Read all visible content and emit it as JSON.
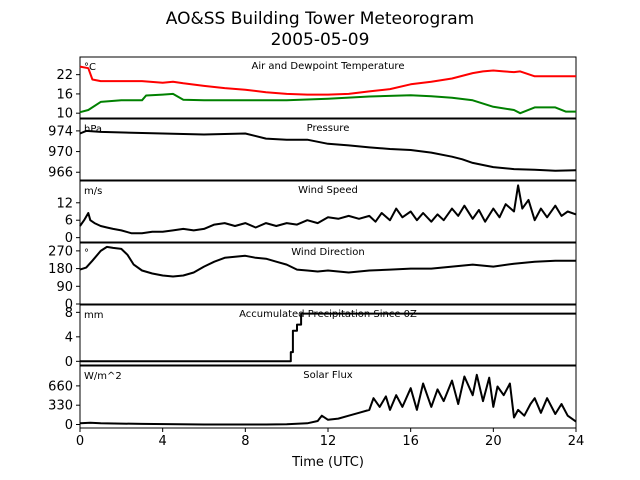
{
  "figure": {
    "title_line1": "AO&SS Building Tower Meteorogram",
    "title_line2": "2005-05-09",
    "xlabel": "Time (UTC)",
    "xlim": [
      0,
      24
    ],
    "xticks": [
      0,
      4,
      8,
      12,
      16,
      20,
      24
    ]
  },
  "chart_data": [
    {
      "type": "line",
      "title": "Air and Dewpoint Temperature",
      "unit": "°C",
      "ylim": [
        8.5,
        27.5
      ],
      "yticks": [
        10,
        16,
        22
      ],
      "series": [
        {
          "color": "#ff0000",
          "x": [
            0,
            0.4,
            0.6,
            1,
            2,
            3,
            4,
            4.5,
            5,
            6,
            7,
            8,
            9,
            10,
            11,
            12,
            13,
            14,
            15,
            16,
            17,
            18,
            19,
            19.5,
            20,
            20.5,
            21,
            21.3,
            22,
            23,
            24
          ],
          "y": [
            24.5,
            24.0,
            20.5,
            20.0,
            20.0,
            20.0,
            19.5,
            19.8,
            19.3,
            18.5,
            17.8,
            17.3,
            16.5,
            16.0,
            15.8,
            15.8,
            16.0,
            16.8,
            17.5,
            19.0,
            19.8,
            20.8,
            22.5,
            23.0,
            23.3,
            23.0,
            22.8,
            23.0,
            21.5,
            21.5,
            21.5
          ]
        },
        {
          "color": "#008000",
          "x": [
            0,
            0.4,
            1,
            2,
            3,
            3.2,
            4,
            4.5,
            5,
            6,
            8,
            10,
            12,
            14,
            16,
            17,
            18,
            19,
            20,
            21,
            21.3,
            22,
            23,
            23.5,
            24
          ],
          "y": [
            10.3,
            11.0,
            13.5,
            14.0,
            14.0,
            15.5,
            15.8,
            16.0,
            14.2,
            14.0,
            14.0,
            14.0,
            14.5,
            15.2,
            15.6,
            15.3,
            14.8,
            14.0,
            12.0,
            11.0,
            10.0,
            11.8,
            11.8,
            10.5,
            10.5
          ]
        }
      ]
    },
    {
      "type": "line",
      "title": "Pressure",
      "unit": "hPa",
      "ylim": [
        964.5,
        976.3
      ],
      "yticks": [
        966,
        970,
        974
      ],
      "series": [
        {
          "color": "#000000",
          "x": [
            0,
            0.3,
            1,
            4,
            6,
            8,
            9,
            10,
            11,
            12,
            13,
            14,
            15,
            16,
            17,
            18,
            18.5,
            19,
            20,
            21,
            22,
            23,
            24
          ],
          "y": [
            973.5,
            974.0,
            973.8,
            973.5,
            973.3,
            973.5,
            972.5,
            972.3,
            972.3,
            971.5,
            971.2,
            970.8,
            970.5,
            970.3,
            969.8,
            969.0,
            968.5,
            967.8,
            967.0,
            966.6,
            966.5,
            966.3,
            966.4
          ]
        }
      ]
    },
    {
      "type": "line",
      "title": "Wind Speed",
      "unit": "m/s",
      "ylim": [
        -1.5,
        19.5
      ],
      "yticks": [
        0,
        6,
        12
      ],
      "series": [
        {
          "color": "#000000",
          "x": [
            0,
            0.2,
            0.4,
            0.5,
            0.7,
            1,
            1.3,
            1.6,
            2,
            2.5,
            3,
            3.5,
            4,
            4.5,
            5,
            5.5,
            6,
            6.5,
            7,
            7.5,
            8,
            8.5,
            9,
            9.5,
            10,
            10.5,
            11,
            11.5,
            12,
            12.5,
            13,
            13.5,
            14,
            14.3,
            14.6,
            15,
            15.3,
            15.6,
            16,
            16.3,
            16.6,
            17,
            17.3,
            17.6,
            18,
            18.3,
            18.6,
            19,
            19.3,
            19.6,
            20,
            20.3,
            20.6,
            21,
            21.2,
            21.4,
            21.7,
            22,
            22.3,
            22.6,
            23,
            23.3,
            23.6,
            24
          ],
          "y": [
            4,
            6,
            8.5,
            6,
            5,
            4,
            3.5,
            3,
            2.5,
            1.5,
            1.5,
            2,
            2,
            2.5,
            3,
            2.5,
            3,
            4.5,
            5,
            4,
            5,
            3.5,
            5,
            4,
            5,
            4.5,
            6,
            5,
            7,
            6.5,
            7.5,
            6.5,
            7.5,
            5.5,
            8.5,
            6,
            10,
            7,
            9,
            6,
            8.5,
            5.5,
            8,
            6,
            10,
            7.5,
            11,
            6.5,
            9.5,
            5.5,
            10,
            7,
            11.5,
            9,
            18,
            10,
            13,
            6,
            10,
            7,
            11,
            7.5,
            9,
            8
          ]
        }
      ]
    },
    {
      "type": "line",
      "title": "Wind Direction",
      "unit": "°",
      "ylim": [
        0,
        310
      ],
      "yticks": [
        0,
        90,
        180,
        270
      ],
      "series": [
        {
          "color": "#000000",
          "x": [
            0,
            0.3,
            0.6,
            1,
            1.3,
            1.6,
            2,
            2.3,
            2.6,
            3,
            3.5,
            4,
            4.5,
            5,
            5.5,
            6,
            6.5,
            7,
            7.5,
            8,
            8.5,
            9,
            9.5,
            10,
            10.5,
            11,
            11.5,
            12,
            13,
            14,
            15,
            16,
            17,
            18,
            19,
            20,
            21,
            22,
            23,
            24
          ],
          "y": [
            175,
            185,
            220,
            270,
            290,
            285,
            280,
            250,
            200,
            170,
            155,
            145,
            140,
            145,
            160,
            190,
            215,
            235,
            240,
            245,
            235,
            230,
            215,
            200,
            175,
            170,
            165,
            170,
            160,
            170,
            175,
            180,
            180,
            190,
            200,
            190,
            205,
            215,
            220,
            220
          ]
        }
      ]
    },
    {
      "type": "line",
      "title": "Accumulated Precipitation Since 0Z",
      "unit": "mm",
      "ylim": [
        -0.6,
        9.2
      ],
      "yticks": [
        0,
        4,
        8
      ],
      "series": [
        {
          "color": "#000000",
          "x": [
            0,
            10.2,
            10.2,
            10.3,
            10.3,
            10.5,
            10.5,
            10.7,
            10.7,
            24
          ],
          "y": [
            0,
            0,
            1.5,
            1.5,
            5.0,
            5.0,
            6.0,
            6.0,
            7.8,
            7.8
          ]
        }
      ]
    },
    {
      "type": "line",
      "title": "Solar Flux",
      "unit": "W/m^2",
      "ylim": [
        -60,
        1000
      ],
      "yticks": [
        0,
        330,
        660
      ],
      "series": [
        {
          "color": "#000000",
          "x": [
            0,
            0.5,
            1,
            3,
            6,
            9,
            10,
            11,
            11.5,
            11.7,
            12,
            12.5,
            13,
            13.5,
            14,
            14.2,
            14.5,
            14.8,
            15,
            15.3,
            15.6,
            16,
            16.3,
            16.6,
            17,
            17.3,
            17.6,
            18,
            18.3,
            18.6,
            19,
            19.2,
            19.5,
            19.8,
            20,
            20.2,
            20.5,
            20.8,
            21,
            21.2,
            21.5,
            21.8,
            22,
            22.3,
            22.6,
            23,
            23.3,
            23.6,
            24
          ],
          "y": [
            20,
            30,
            20,
            10,
            0,
            0,
            5,
            20,
            60,
            150,
            80,
            100,
            150,
            200,
            250,
            450,
            300,
            480,
            250,
            500,
            300,
            620,
            250,
            700,
            300,
            600,
            400,
            750,
            350,
            820,
            500,
            850,
            400,
            800,
            300,
            650,
            500,
            700,
            120,
            250,
            150,
            350,
            450,
            200,
            450,
            180,
            350,
            150,
            50
          ]
        }
      ]
    }
  ]
}
